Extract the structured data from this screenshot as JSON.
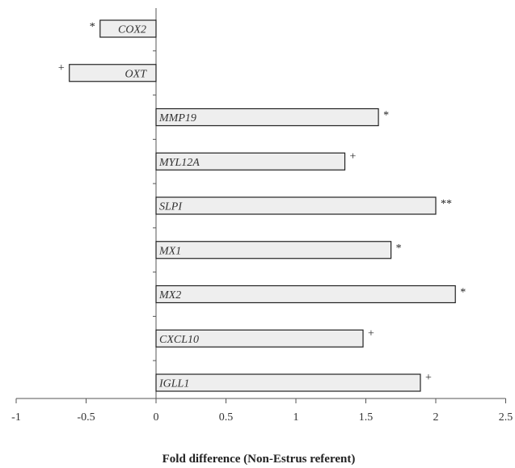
{
  "chart_data": {
    "type": "bar",
    "orientation": "horizontal",
    "xlabel": "Fold difference (Non-Estrus referent)",
    "xlim": [
      -1,
      2.5
    ],
    "xticks": [
      "-1",
      "-0.5",
      "0",
      "0.5",
      "1",
      "1.5",
      "2",
      "2.5"
    ],
    "categories": [
      "COX2",
      "OXT",
      "MMP19",
      "MYL12A",
      "SLPI",
      "MX1",
      "MX2",
      "CXCL10",
      "IGLL1"
    ],
    "values": [
      -0.4,
      -0.62,
      1.59,
      1.35,
      2.0,
      1.68,
      2.14,
      1.48,
      1.89
    ],
    "significance": [
      "*",
      "+",
      "*",
      "+",
      "**",
      "*",
      "*",
      "+",
      "+"
    ],
    "bar_fill": "#eeeeee",
    "bar_stroke": "#222222"
  }
}
